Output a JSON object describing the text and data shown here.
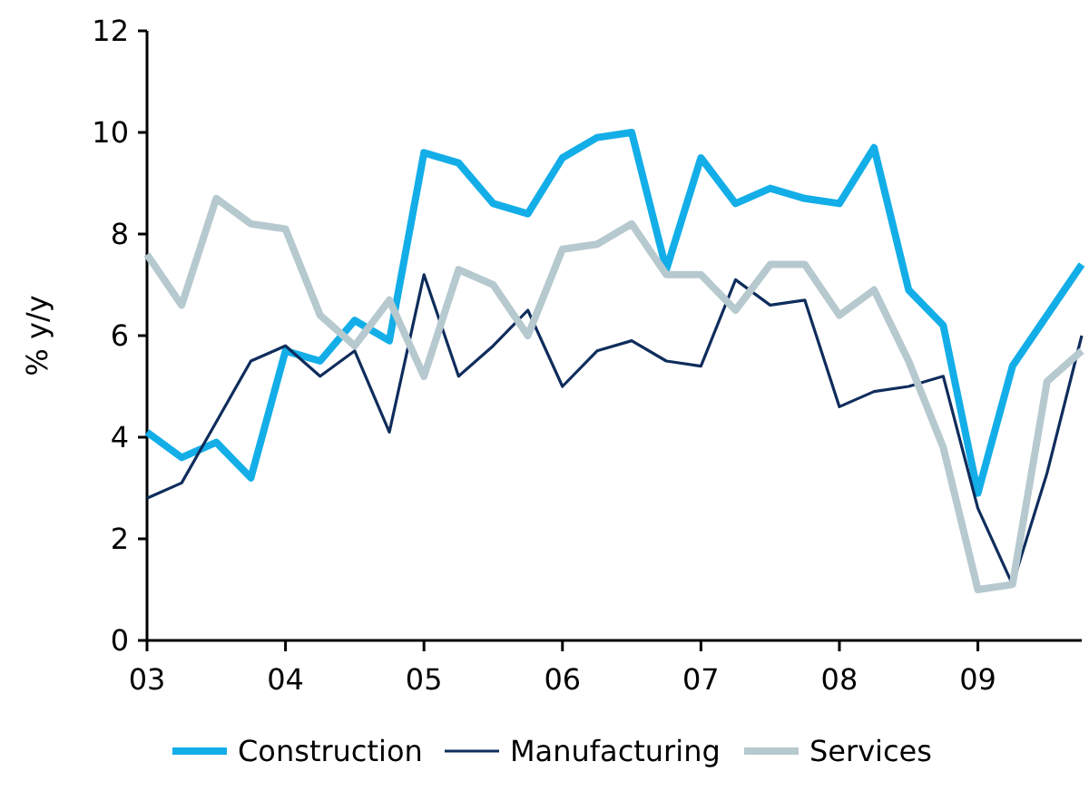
{
  "chart_data": {
    "type": "line",
    "ylabel": "% y/y",
    "x": [
      2003,
      2003.25,
      2003.5,
      2003.75,
      2004,
      2004.25,
      2004.5,
      2004.75,
      2005,
      2005.25,
      2005.5,
      2005.75,
      2006,
      2006.25,
      2006.5,
      2006.75,
      2007,
      2007.25,
      2007.5,
      2007.75,
      2008,
      2008.25,
      2008.5,
      2008.75,
      2009,
      2009.25,
      2009.5,
      2009.75
    ],
    "series": [
      {
        "name": "Construction",
        "color": "#13aee8",
        "values": [
          4.1,
          3.6,
          3.9,
          3.2,
          5.7,
          5.5,
          6.3,
          5.9,
          9.6,
          9.4,
          8.6,
          8.4,
          9.5,
          9.9,
          10.0,
          7.3,
          9.5,
          8.6,
          8.9,
          8.7,
          8.6,
          9.7,
          6.9,
          6.2,
          2.9,
          5.4,
          6.4,
          7.4
        ]
      },
      {
        "name": "Manufacturing",
        "color": "#0f2d5c",
        "values": [
          2.8,
          3.1,
          4.3,
          5.5,
          5.8,
          5.2,
          5.7,
          4.1,
          7.2,
          5.2,
          5.8,
          6.5,
          5.0,
          5.7,
          5.9,
          5.5,
          5.4,
          7.1,
          6.6,
          6.7,
          4.6,
          4.9,
          5.0,
          5.2,
          2.6,
          1.1,
          3.3,
          6.0
        ]
      },
      {
        "name": "Services",
        "color": "#b6c9cf",
        "values": [
          7.6,
          6.6,
          8.7,
          8.2,
          8.1,
          6.4,
          5.8,
          6.7,
          5.2,
          7.3,
          7.0,
          6.0,
          7.7,
          7.8,
          8.2,
          7.2,
          7.2,
          6.5,
          7.4,
          7.4,
          6.4,
          6.9,
          5.5,
          3.8,
          1.0,
          1.1,
          5.1,
          5.7
        ]
      }
    ],
    "xlim": [
      2003,
      2009.75
    ],
    "xticks": [
      {
        "value": 2003,
        "label": "03"
      },
      {
        "value": 2004,
        "label": "04"
      },
      {
        "value": 2005,
        "label": "05"
      },
      {
        "value": 2006,
        "label": "06"
      },
      {
        "value": 2007,
        "label": "07"
      },
      {
        "value": 2008,
        "label": "08"
      },
      {
        "value": 2009,
        "label": "09"
      }
    ],
    "ylim": [
      0,
      12
    ],
    "yticks": [
      0,
      2,
      4,
      6,
      8,
      10,
      12
    ],
    "grid": false,
    "legend": "bottom",
    "marker": "none",
    "line_style": "solid"
  }
}
